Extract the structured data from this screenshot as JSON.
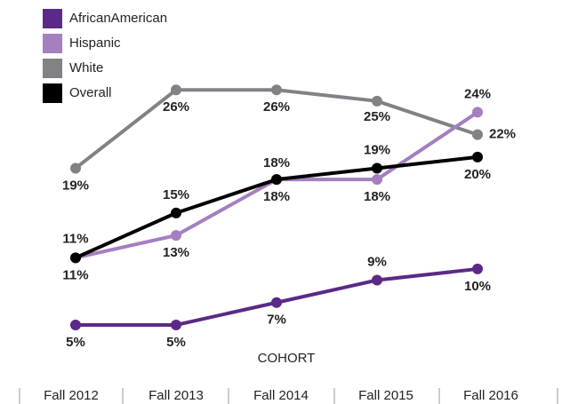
{
  "chart_data": {
    "type": "line",
    "x_label": "COHORT",
    "categories": [
      "Fall 2012",
      "Fall 2013",
      "Fall 2014",
      "Fall 2015",
      "Fall 2016"
    ],
    "ylim": [
      0,
      28
    ],
    "legend": "top-left",
    "series": [
      {
        "name": "AfricanAmerican",
        "color": "#5b2a86",
        "values": [
          5,
          5,
          7,
          9,
          10
        ],
        "value_labels": [
          "5%",
          "5%",
          "7%",
          "9%",
          "10%"
        ]
      },
      {
        "name": "Hispanic",
        "color": "#a57fc0",
        "values": [
          11,
          13,
          18,
          18,
          24
        ],
        "value_labels": [
          "11%",
          "13%",
          "18%",
          "18%",
          "24%"
        ]
      },
      {
        "name": "White",
        "color": "#808285",
        "values": [
          19,
          26,
          26,
          25,
          22
        ],
        "value_labels": [
          "19%",
          "26%",
          "26%",
          "25%",
          "22%"
        ]
      },
      {
        "name": "Overall",
        "color": "#000000",
        "values": [
          11,
          15,
          18,
          19,
          20
        ],
        "value_labels": [
          "11%",
          "15%",
          "18%",
          "19%",
          "20%"
        ]
      }
    ]
  }
}
